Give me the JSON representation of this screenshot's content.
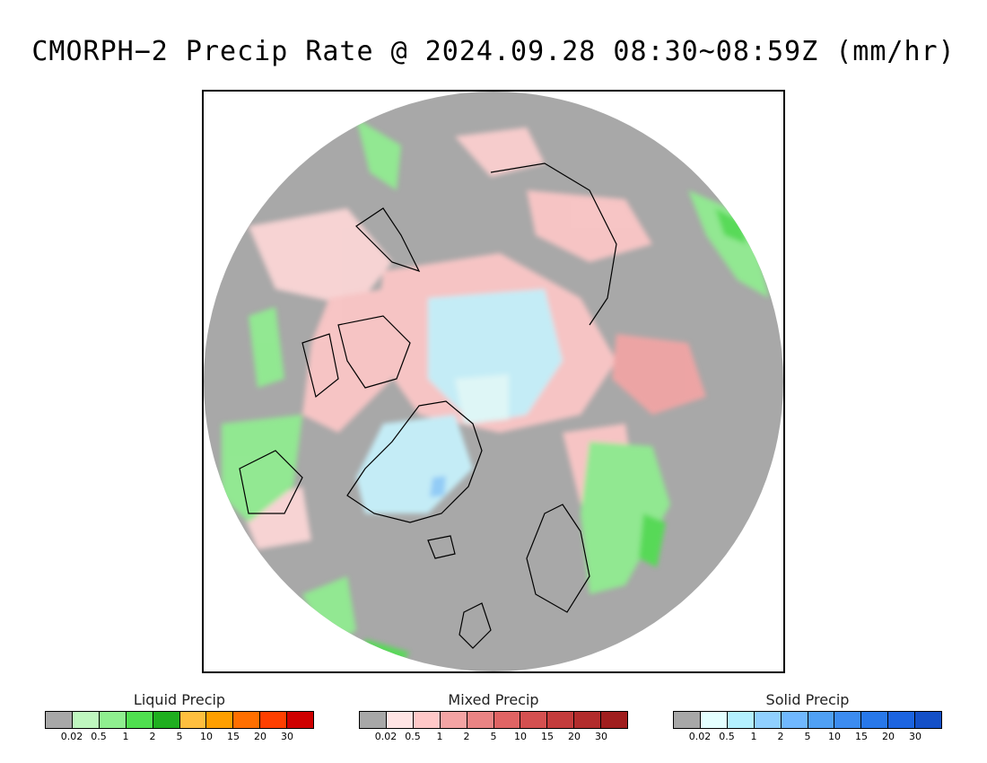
{
  "title": "CMORPH−2 Precip Rate @ 2024.09.28 08:30~08:59Z (mm/hr)",
  "legends": [
    {
      "label": "Liquid Precip",
      "colors": [
        "#a8a8a8",
        "#bff7bf",
        "#8fef8f",
        "#4fdf4f",
        "#1faf1f",
        "#ffbf3f",
        "#ff9f00",
        "#ff6f00",
        "#ff3f00",
        "#cf0000"
      ],
      "ticks": [
        "0.02",
        "0.5",
        "1",
        "2",
        "5",
        "10",
        "15",
        "20",
        "30"
      ]
    },
    {
      "label": "Mixed Precip",
      "colors": [
        "#a8a8a8",
        "#ffe4e4",
        "#ffc8c8",
        "#f4a4a4",
        "#ea8484",
        "#e06464",
        "#d45050",
        "#c43c3c",
        "#b22c2c",
        "#a01e1e"
      ],
      "ticks": [
        "0.02",
        "0.5",
        "1",
        "2",
        "5",
        "10",
        "15",
        "20",
        "30"
      ]
    },
    {
      "label": "Solid Precip",
      "colors": [
        "#a8a8a8",
        "#e4ffff",
        "#b4f0ff",
        "#90d0ff",
        "#70b8ff",
        "#50a0f4",
        "#3c8cf0",
        "#2878ea",
        "#1c64e0",
        "#1450c8"
      ],
      "ticks": [
        "0.02",
        "0.5",
        "1",
        "2",
        "5",
        "10",
        "15",
        "20",
        "30"
      ]
    }
  ],
  "map": {
    "background_color": "#a8a8a8",
    "coastline_color": "#000000"
  }
}
